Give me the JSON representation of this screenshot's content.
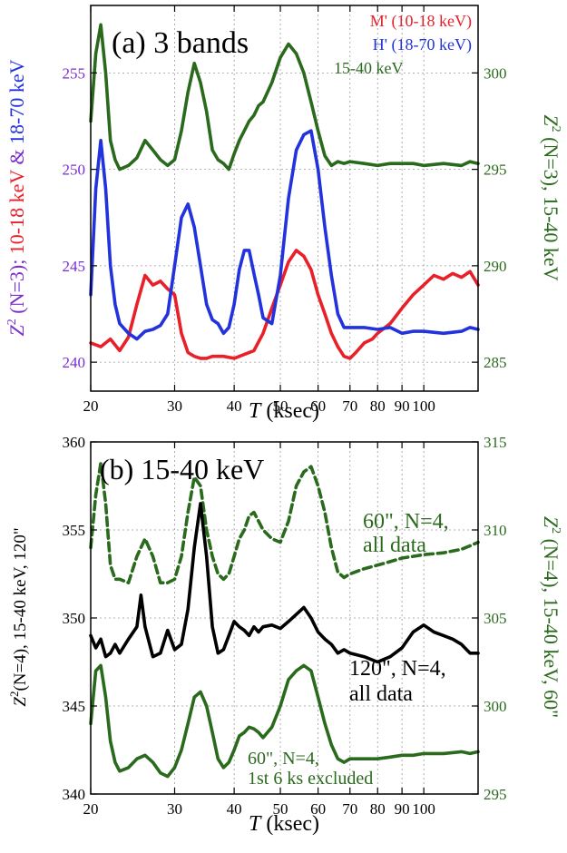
{
  "chart_data": [
    {
      "type": "line",
      "title": "(a) 3 bands",
      "xlabel": {
        "italic": "T",
        "rest": " (ksec)"
      },
      "xscale": "log",
      "xlim": [
        20,
        130
      ],
      "xticks": [
        20,
        30,
        40,
        50,
        60,
        70,
        80,
        90,
        100
      ],
      "xtick_labels": [
        "20",
        "30",
        "40",
        "50",
        "60",
        "70",
        "80",
        "90",
        "100"
      ],
      "ylim_left": [
        238.5,
        258.5
      ],
      "yticks_left": [
        240,
        245,
        250,
        255
      ],
      "ylim_right": [
        283.5,
        303.5
      ],
      "yticks_right": [
        285,
        290,
        295,
        300
      ],
      "ylabel_left": {
        "prefix": "Z",
        "sup": "2",
        "nlabel": " (N=3); ",
        "red": "10-18 keV",
        "amp": " & ",
        "blue": "18-70 keV"
      },
      "ylabel_right": {
        "prefix": "Z",
        "sup": "2",
        "text": " (N=3), 15-40 keV"
      },
      "grid": true,
      "legend": [
        "M' (10-18 keV)",
        "H' (18-70 keV)",
        "15-40 keV"
      ],
      "legend_position": "top-right",
      "colors": {
        "red": "#e8202a",
        "blue": "#2233dd",
        "green": "#2a6a1c",
        "purple": "#7a2ed0",
        "black": "#000000"
      },
      "series": [
        {
          "name": "M' (10-18 keV)",
          "axis": "left",
          "color": "#e8202a",
          "dash": false,
          "x": [
            20,
            21,
            22,
            23,
            24,
            25,
            26,
            27,
            28,
            29,
            30,
            31,
            32,
            33,
            34,
            35,
            36,
            38,
            40,
            42,
            44,
            46,
            48,
            50,
            52,
            54,
            56,
            58,
            60,
            62,
            64,
            66,
            68,
            70,
            72,
            75,
            78,
            80,
            85,
            90,
            95,
            100,
            105,
            110,
            115,
            120,
            125,
            130
          ],
          "y": [
            241.0,
            240.8,
            241.2,
            240.6,
            241.3,
            243.0,
            244.5,
            244.0,
            244.2,
            243.8,
            243.5,
            241.5,
            240.5,
            240.3,
            240.2,
            240.2,
            240.3,
            240.3,
            240.2,
            240.4,
            240.6,
            241.5,
            242.8,
            244.0,
            245.2,
            245.8,
            245.5,
            244.8,
            243.5,
            242.5,
            241.5,
            240.8,
            240.3,
            240.2,
            240.5,
            241.0,
            241.2,
            241.5,
            242.0,
            242.8,
            243.5,
            244.0,
            244.5,
            244.3,
            244.6,
            244.4,
            244.7,
            244.0
          ]
        },
        {
          "name": "H' (18-70 keV)",
          "axis": "left",
          "color": "#2233dd",
          "dash": false,
          "x": [
            20,
            20.5,
            21,
            21.5,
            22,
            22.5,
            23,
            24,
            25,
            26,
            27,
            28,
            29,
            30,
            31,
            32,
            33,
            34,
            35,
            36,
            37,
            38,
            39,
            40,
            41,
            42,
            43,
            44,
            45,
            46,
            48,
            50,
            52,
            54,
            56,
            58,
            60,
            62,
            64,
            66,
            68,
            70,
            75,
            80,
            85,
            90,
            95,
            100,
            110,
            120,
            125,
            130
          ],
          "y": [
            243.5,
            249.0,
            251.5,
            249.0,
            245.0,
            243.0,
            242.0,
            241.5,
            241.2,
            241.6,
            241.7,
            241.9,
            242.5,
            245.0,
            247.5,
            248.2,
            247.0,
            245.0,
            243.0,
            242.2,
            242.0,
            241.5,
            241.8,
            243.0,
            244.8,
            245.8,
            245.8,
            244.6,
            243.5,
            242.3,
            242.0,
            244.5,
            248.5,
            251.0,
            251.8,
            252.0,
            250.0,
            247.0,
            244.5,
            242.5,
            241.8,
            241.8,
            241.8,
            241.7,
            241.8,
            241.5,
            241.6,
            241.6,
            241.5,
            241.6,
            241.8,
            241.7
          ]
        },
        {
          "name": "15-40 keV",
          "axis": "right",
          "color": "#2a6a1c",
          "dash": false,
          "x": [
            20,
            20.5,
            21,
            21.5,
            22,
            22.5,
            23,
            24,
            25,
            26,
            27,
            28,
            29,
            30,
            31,
            32,
            33,
            34,
            35,
            36,
            37,
            38,
            39,
            40,
            41,
            42,
            43,
            44,
            45,
            46,
            48,
            50,
            52,
            54,
            56,
            58,
            60,
            62,
            64,
            66,
            68,
            70,
            75,
            80,
            85,
            90,
            95,
            100,
            110,
            120,
            125,
            130
          ],
          "y": [
            297.5,
            301.0,
            302.5,
            300.0,
            296.5,
            295.5,
            295.0,
            295.2,
            295.6,
            296.5,
            296.0,
            295.5,
            295.2,
            295.5,
            297.0,
            299.0,
            300.5,
            299.5,
            298.0,
            296.0,
            295.5,
            295.3,
            295.0,
            295.8,
            296.5,
            297.0,
            297.5,
            297.8,
            298.3,
            298.5,
            299.5,
            300.8,
            301.5,
            301.0,
            300.0,
            298.5,
            297.0,
            295.7,
            295.2,
            295.4,
            295.3,
            295.4,
            295.3,
            295.2,
            295.3,
            295.3,
            295.3,
            295.2,
            295.3,
            295.2,
            295.4,
            295.3
          ]
        }
      ]
    },
    {
      "type": "line",
      "title": "(b) 15-40 keV",
      "xlabel": {
        "italic": "T",
        "rest": " (ksec)"
      },
      "xscale": "log",
      "xlim": [
        20,
        130
      ],
      "xticks": [
        20,
        30,
        40,
        50,
        60,
        70,
        80,
        90,
        100
      ],
      "xtick_labels": [
        "20",
        "30",
        "40",
        "50",
        "60",
        "70",
        "80",
        "90",
        "100"
      ],
      "ylim_left": [
        340,
        360
      ],
      "yticks_left": [
        340,
        345,
        350,
        355,
        360
      ],
      "ylim_right": [
        295,
        315
      ],
      "yticks_right": [
        295,
        300,
        305,
        310,
        315
      ],
      "ylabel_left": {
        "prefix": "Z",
        "sup": "2",
        "text": "(N=4), 15-40 keV, 120\""
      },
      "ylabel_right": {
        "prefix": "Z",
        "sup": "2",
        "text": " (N=4), 15-40 keV, 60\""
      },
      "grid": true,
      "annotations": [
        {
          "lines": [
            "60\", N=4,",
            "all data"
          ],
          "color": "#2a6a1c"
        },
        {
          "lines": [
            "120\", N=4,",
            "all data"
          ],
          "color": "#000000"
        },
        {
          "lines": [
            "60\", N=4,",
            "1st 6 ks excluded"
          ],
          "color": "#2a6a1c"
        }
      ],
      "series": [
        {
          "name": "60\", N=4, all data",
          "axis": "right",
          "color": "#2a6a1c",
          "dash": true,
          "x": [
            20,
            20.5,
            21,
            21.5,
            22,
            22.5,
            23,
            24,
            25,
            26,
            27,
            28,
            29,
            30,
            31,
            32,
            33,
            34,
            35,
            36,
            37,
            38,
            39,
            40,
            41,
            42,
            43,
            44,
            45,
            46,
            48,
            50,
            52,
            54,
            56,
            58,
            60,
            62,
            64,
            66,
            68,
            70,
            75,
            80,
            85,
            90,
            95,
            100,
            110,
            120,
            125,
            130
          ],
          "y": [
            309.0,
            312.0,
            313.8,
            311.5,
            308.0,
            307.2,
            307.2,
            307.0,
            308.5,
            309.5,
            308.5,
            307.0,
            307.0,
            307.2,
            308.5,
            311.0,
            313.0,
            312.5,
            310.0,
            308.5,
            307.5,
            307.2,
            307.5,
            308.5,
            309.5,
            310.0,
            310.8,
            311.0,
            310.5,
            310.0,
            309.5,
            309.3,
            310.5,
            312.5,
            313.3,
            313.6,
            312.5,
            311.0,
            309.0,
            307.6,
            307.3,
            307.5,
            307.8,
            308.0,
            308.2,
            308.4,
            308.5,
            308.6,
            308.7,
            308.9,
            309.1,
            309.3
          ]
        },
        {
          "name": "120\", N=4, all data",
          "axis": "left",
          "color": "#000000",
          "dash": false,
          "x": [
            20,
            20.5,
            21,
            21.5,
            22,
            22.5,
            23,
            24,
            25,
            25.5,
            26,
            27,
            28,
            29,
            30,
            31,
            32,
            33,
            34,
            35,
            36,
            37,
            38,
            39,
            40,
            41,
            42,
            43,
            44,
            45,
            46,
            48,
            50,
            52,
            54,
            56,
            58,
            60,
            62,
            64,
            66,
            68,
            70,
            75,
            80,
            85,
            90,
            95,
            100,
            105,
            110,
            115,
            120,
            125,
            130
          ],
          "y": [
            349.0,
            348.3,
            348.8,
            347.8,
            348.0,
            348.5,
            348.0,
            348.8,
            349.5,
            351.3,
            349.5,
            347.8,
            348.0,
            349.3,
            348.2,
            348.5,
            350.5,
            354.0,
            356.5,
            353.5,
            349.5,
            348.0,
            348.2,
            349.0,
            349.8,
            349.5,
            349.3,
            349.0,
            349.5,
            349.2,
            349.5,
            349.6,
            349.4,
            349.8,
            350.2,
            350.6,
            350.0,
            349.2,
            348.8,
            348.5,
            348.0,
            348.2,
            348.0,
            347.8,
            347.5,
            347.8,
            348.3,
            349.2,
            349.6,
            349.2,
            349.0,
            348.8,
            348.5,
            348.0,
            348.0
          ]
        },
        {
          "name": "60\", N=4, 1st 6 ks excluded",
          "axis": "right",
          "color": "#2a6a1c",
          "dash": false,
          "x": [
            20,
            20.5,
            21,
            21.5,
            22,
            22.5,
            23,
            24,
            25,
            26,
            27,
            28,
            29,
            30,
            31,
            32,
            33,
            34,
            35,
            36,
            37,
            38,
            39,
            40,
            41,
            42,
            43,
            44,
            45,
            46,
            48,
            50,
            52,
            54,
            56,
            58,
            60,
            62,
            64,
            66,
            68,
            70,
            75,
            80,
            85,
            90,
            95,
            100,
            110,
            120,
            125,
            130
          ],
          "y": [
            299.0,
            302.0,
            302.3,
            300.5,
            298.0,
            296.8,
            296.3,
            296.5,
            297.0,
            297.2,
            296.8,
            296.2,
            296.0,
            296.5,
            297.5,
            299.0,
            300.5,
            300.8,
            300.0,
            298.5,
            297.0,
            296.5,
            296.8,
            297.5,
            298.3,
            298.5,
            298.8,
            298.7,
            298.5,
            298.2,
            298.8,
            300.0,
            301.5,
            302.0,
            302.3,
            302.0,
            300.5,
            299.0,
            297.8,
            297.0,
            296.8,
            297.0,
            297.0,
            297.0,
            297.1,
            297.2,
            297.2,
            297.3,
            297.3,
            297.4,
            297.3,
            297.4
          ]
        }
      ]
    }
  ]
}
